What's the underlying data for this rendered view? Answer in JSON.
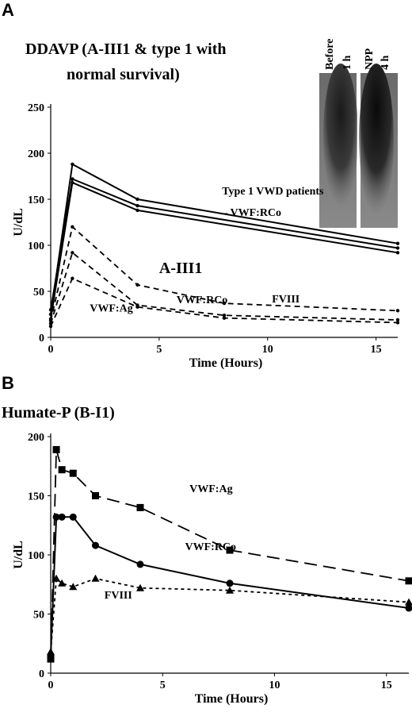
{
  "panels": {
    "a": {
      "letter": "A",
      "title_line1": "DDAVP (A-III1 & type 1 with",
      "title_line2": "normal survival)",
      "gel_labels": {
        "before": "Before",
        "h1": "1 h",
        "npp": "NPP",
        "h4": "4 h"
      }
    },
    "b": {
      "letter": "B",
      "title": "Humate-P (B-I1)"
    }
  },
  "chart_data": [
    {
      "type": "line",
      "title": "DDAVP (A-III1 & type 1 with normal survival)",
      "xlabel": "Time (Hours)",
      "ylabel": "U/dL",
      "xlim": [
        0,
        16
      ],
      "ylim": [
        0,
        250
      ],
      "xticks": [
        0,
        5,
        10,
        15
      ],
      "yticks": [
        0,
        50,
        100,
        150,
        200,
        250
      ],
      "grid": false,
      "series": [
        {
          "style": "solid",
          "x": [
            0,
            1,
            4,
            16
          ],
          "y": [
            25,
            188,
            150,
            102
          ]
        },
        {
          "style": "solid",
          "x": [
            0,
            1,
            4,
            16
          ],
          "y": [
            30,
            172,
            143,
            97
          ]
        },
        {
          "style": "solid",
          "x": [
            0,
            1,
            4,
            16
          ],
          "y": [
            20,
            168,
            138,
            92
          ]
        },
        {
          "style": "dashed",
          "x": [
            0,
            1,
            4,
            8,
            16
          ],
          "y": [
            18,
            120,
            57,
            37,
            29
          ]
        },
        {
          "style": "dashed",
          "x": [
            0,
            1,
            4,
            8,
            16
          ],
          "y": [
            15,
            92,
            35,
            24,
            19
          ]
        },
        {
          "style": "dashed",
          "x": [
            0,
            1,
            4,
            8,
            16
          ],
          "y": [
            12,
            64,
            33,
            21,
            16
          ]
        }
      ],
      "annotations": [
        {
          "text": "Type 1 VWD patients",
          "x": 7.9,
          "y": 155
        },
        {
          "text": "– VWF:RCo",
          "x": 7.9,
          "y": 132
        },
        {
          "text": "A-III1",
          "x": 5.0,
          "y": 70
        },
        {
          "text": "FVIII",
          "x": 10.2,
          "y": 38
        },
        {
          "text": "VWF:RCo",
          "x": 5.8,
          "y": 37
        },
        {
          "text": "VWF:Ag",
          "x": 1.8,
          "y": 28
        }
      ]
    },
    {
      "type": "line",
      "title": "Humate-P (B-I1)",
      "xlabel": "Time (Hours)",
      "ylabel": "U/dL",
      "xlim": [
        0,
        16
      ],
      "ylim": [
        0,
        200
      ],
      "xticks": [
        0,
        5,
        10,
        15
      ],
      "yticks": [
        0,
        50,
        100,
        150,
        200
      ],
      "grid": false,
      "series": [
        {
          "name": "VWF:Ag",
          "style": "long-dash",
          "marker": "square",
          "x": [
            0,
            0.25,
            0.5,
            1,
            2,
            4,
            8,
            16
          ],
          "y": [
            12,
            189,
            172,
            169,
            150,
            140,
            104,
            78
          ]
        },
        {
          "name": "VWF:RCo",
          "style": "solid",
          "marker": "circle",
          "x": [
            0,
            0.25,
            0.5,
            1,
            2,
            4,
            8,
            16
          ],
          "y": [
            15,
            132,
            132,
            132,
            108,
            92,
            76,
            55
          ]
        },
        {
          "name": "FVIII",
          "style": "dotted",
          "marker": "triangle",
          "x": [
            0,
            0.25,
            0.5,
            1,
            2,
            4,
            8,
            16
          ],
          "y": [
            18,
            80,
            76,
            73,
            80,
            72,
            70,
            60
          ]
        }
      ],
      "annotations": [
        {
          "text": "VWF:Ag",
          "x": 6.2,
          "y": 153
        },
        {
          "text": "VWF:RCo",
          "x": 6.0,
          "y": 104
        },
        {
          "text": "FVIII",
          "x": 2.4,
          "y": 63
        }
      ]
    }
  ]
}
